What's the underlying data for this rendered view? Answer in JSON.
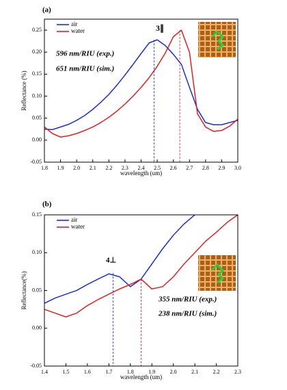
{
  "chart_data": [
    {
      "type": "line",
      "label": "(a)",
      "xlabel": "wavelength (um)",
      "ylabel": "Reflectance (%)",
      "x": [
        1.8,
        1.85,
        1.9,
        1.95,
        2.0,
        2.05,
        2.1,
        2.15,
        2.2,
        2.25,
        2.3,
        2.35,
        2.4,
        2.45,
        2.5,
        2.55,
        2.6,
        2.65,
        2.7,
        2.75,
        2.8,
        2.85,
        2.9,
        2.95,
        3.0
      ],
      "series": [
        {
          "name": "air",
          "color": "#0a1ee8",
          "values": [
            0.025,
            0.024,
            0.03,
            0.036,
            0.045,
            0.056,
            0.07,
            0.086,
            0.104,
            0.125,
            0.148,
            0.172,
            0.197,
            0.221,
            0.228,
            0.215,
            0.195,
            0.172,
            0.12,
            0.07,
            0.04,
            0.035,
            0.035,
            0.04,
            0.045
          ]
        },
        {
          "name": "water",
          "color": "#e81010",
          "values": [
            0.03,
            0.015,
            0.007,
            0.01,
            0.015,
            0.022,
            0.03,
            0.04,
            0.052,
            0.066,
            0.082,
            0.1,
            0.12,
            0.142,
            0.168,
            0.198,
            0.235,
            0.25,
            0.2,
            0.06,
            0.03,
            0.02,
            0.022,
            0.032,
            0.048
          ]
        }
      ],
      "markers": [
        {
          "x": 2.48,
          "y": 0.228,
          "color": "#0a1ee8"
        },
        {
          "x": 2.64,
          "y": 0.25,
          "color": "#e81010"
        }
      ],
      "annotations": [
        "3∥",
        "596 nm/RIU (exp.)",
        "651 nm/RIU (sim.)"
      ],
      "xlim": [
        1.8,
        3.0
      ],
      "ylim": [
        -0.05,
        0.275
      ],
      "xticks": [
        1.8,
        1.9,
        {
          "value": 2,
          "label": "2.0"
        },
        2.1,
        2.2,
        2.3,
        2.4,
        2.5,
        2.6,
        2.7,
        2.8,
        2.9,
        {
          "value": 3,
          "label": "3.0"
        }
      ],
      "yticks": [
        -0.05,
        {
          "value": 0,
          "label": "0.00"
        },
        0.05,
        {
          "value": 0.1,
          "label": "0.10"
        },
        0.15,
        {
          "value": 0.2,
          "label": "0.20"
        },
        0.25
      ],
      "legend": "upper-left"
    },
    {
      "type": "line",
      "label": "(b)",
      "xlabel": "wavelength (um)",
      "ylabel": "Reflectance(%)",
      "x": [
        1.4,
        1.45,
        1.5,
        1.55,
        1.6,
        1.65,
        1.7,
        1.75,
        1.8,
        1.85,
        1.9,
        1.95,
        2.0,
        2.05,
        2.1,
        2.15,
        2.2,
        2.25,
        2.3
      ],
      "series": [
        {
          "name": "air",
          "color": "#0a1ee8",
          "values": [
            0.033,
            0.04,
            0.045,
            0.05,
            0.058,
            0.065,
            0.072,
            0.068,
            0.055,
            0.065,
            0.085,
            0.105,
            0.123,
            0.138,
            0.15,
            null,
            null,
            null,
            null
          ]
        },
        {
          "name": "water",
          "color": "#e81010",
          "values": [
            0.025,
            0.02,
            0.015,
            0.02,
            0.03,
            0.038,
            0.045,
            0.052,
            0.058,
            0.065,
            0.052,
            0.055,
            0.068,
            0.085,
            0.1,
            0.115,
            0.127,
            0.14,
            0.15
          ]
        }
      ],
      "markers": [
        {
          "x": 1.72,
          "y": 0.073,
          "color": "#0a1ee8"
        },
        {
          "x": 1.85,
          "y": 0.065,
          "color": "#e81010"
        }
      ],
      "annotations": [
        "4⊥",
        "355 nm/RIU (exp.)",
        "238 nm/RIU (sim.)"
      ],
      "xlim": [
        1.4,
        2.3
      ],
      "ylim": [
        -0.05,
        0.15
      ],
      "xticks": [
        1.4,
        1.5,
        1.6,
        1.7,
        1.8,
        1.9,
        {
          "value": 2,
          "label": "2.0"
        },
        2.1,
        2.2,
        2.3
      ],
      "yticks": [
        -0.05,
        {
          "value": 0,
          "label": "0.00"
        },
        0.05,
        {
          "value": 0.1,
          "label": "0.10"
        },
        0.15
      ],
      "legend": "upper-left"
    }
  ]
}
